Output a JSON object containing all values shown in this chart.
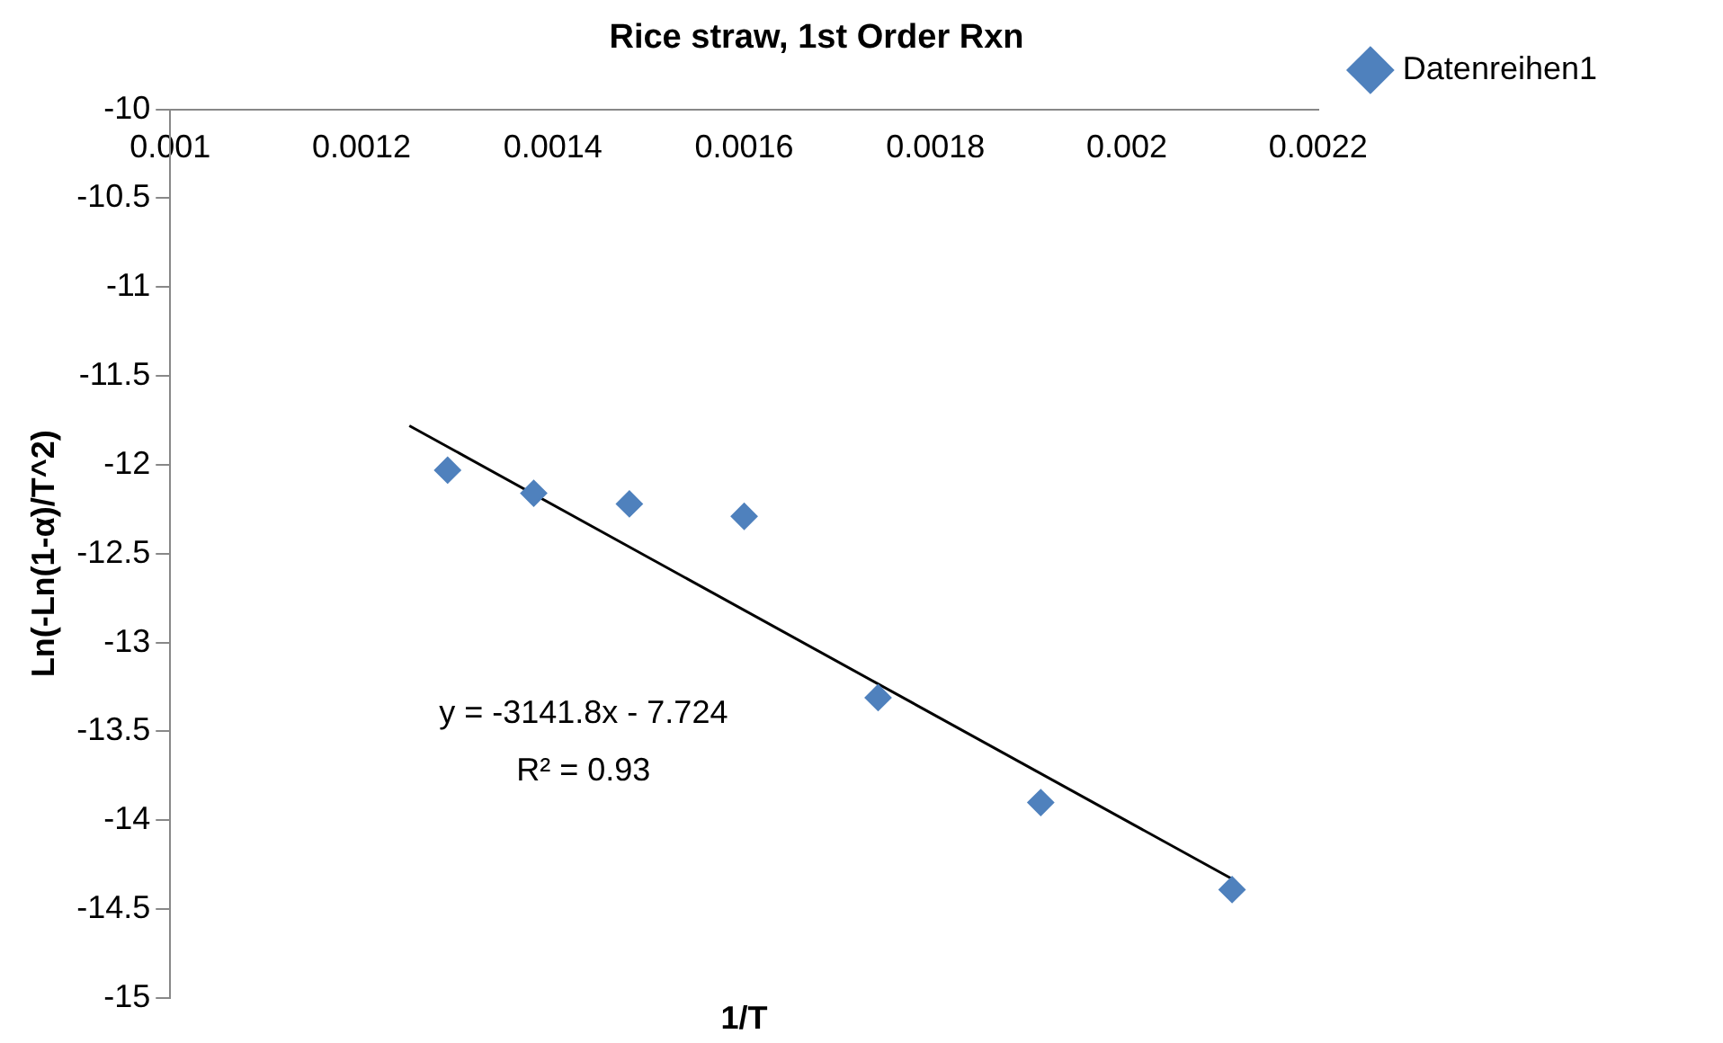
{
  "chart_data": {
    "type": "scatter",
    "title": "Rice straw, 1st Order Rxn",
    "xlabel": "1/T",
    "ylabel": "Ln(-Ln(1-α)/T^2)",
    "series": [
      {
        "name": "Datenreihen1",
        "color": "#4f81bd",
        "x": [
          0.00129,
          0.00138,
          0.00148,
          0.0016,
          0.00174,
          0.00191,
          0.00211
        ],
        "values": [
          -12.03,
          -12.16,
          -12.22,
          -12.29,
          -13.31,
          -13.9,
          -14.39
        ]
      },
      {
        "type": "line",
        "color": "#000000",
        "x": [
          0.00125,
          0.00211
        ],
        "values": [
          -11.78,
          -14.33
        ],
        "marker": "none"
      }
    ],
    "marker": "diamond",
    "legend": "right",
    "grid": false,
    "xlim": [
      0.001,
      0.0022
    ],
    "xticks": [
      0.001,
      0.0012,
      0.0014,
      0.0016,
      0.0018,
      0.002,
      0.0022
    ],
    "ylim": [
      -15,
      -10
    ],
    "yticks": [
      -15,
      -14.5,
      -14,
      -13.5,
      -13,
      -12.5,
      -12,
      -11.5,
      -11,
      -10.5,
      -10
    ],
    "annotations": [
      "y = -3141.8x - 7.724",
      "R² = 0.93"
    ]
  }
}
